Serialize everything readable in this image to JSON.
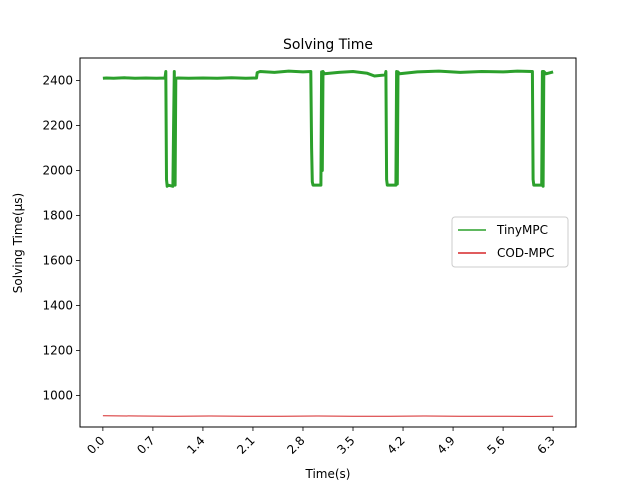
{
  "chart_data": {
    "type": "line",
    "title": "Solving Time",
    "xlabel": "Time(s)",
    "ylabel": "Solving Time(μs)",
    "xlim": [
      -0.32,
      6.62
    ],
    "ylim": [
      860,
      2500
    ],
    "xticks": [
      0.0,
      0.7,
      1.4,
      2.1,
      2.8,
      3.5,
      4.2,
      4.9,
      5.6,
      6.3
    ],
    "xtick_labels": [
      "0.0",
      "0.7",
      "1.4",
      "2.1",
      "2.8",
      "3.5",
      "4.2",
      "4.9",
      "5.6",
      "6.3"
    ],
    "yticks": [
      1000,
      1200,
      1400,
      1600,
      1800,
      2000,
      2200,
      2400
    ],
    "ytick_labels": [
      "1000",
      "1200",
      "1400",
      "1600",
      "1800",
      "2000",
      "2200",
      "2400"
    ],
    "grid": false,
    "legend": "center-right",
    "series": [
      {
        "name": "TinyMPC",
        "color": "#2ca02c",
        "x": [
          0.0,
          0.05,
          0.15,
          0.3,
          0.45,
          0.6,
          0.75,
          0.87,
          0.88,
          0.89,
          0.9,
          0.91,
          0.98,
          0.99,
          1.0,
          1.01,
          1.02,
          1.05,
          1.2,
          1.4,
          1.6,
          1.8,
          2.0,
          2.15,
          2.16,
          2.2,
          2.4,
          2.6,
          2.8,
          2.91,
          2.92,
          2.93,
          2.94,
          3.05,
          3.06,
          3.07,
          3.08,
          3.1,
          3.3,
          3.5,
          3.7,
          3.8,
          3.95,
          3.96,
          3.97,
          3.98,
          4.1,
          4.11,
          4.12,
          4.13,
          4.15,
          4.4,
          4.7,
          5.0,
          5.3,
          5.6,
          5.8,
          6.0,
          6.01,
          6.02,
          6.03,
          6.14,
          6.15,
          6.16,
          6.17,
          6.2,
          6.3
        ],
        "values": [
          2410,
          2411,
          2410,
          2412,
          2410,
          2411,
          2410,
          2411,
          2440,
          1960,
          1930,
          1935,
          1930,
          2200,
          2440,
          1935,
          2410,
          2411,
          2410,
          2411,
          2410,
          2412,
          2410,
          2411,
          2435,
          2440,
          2436,
          2442,
          2438,
          2440,
          2100,
          1950,
          1935,
          1935,
          2438,
          2000,
          2440,
          2430,
          2436,
          2440,
          2432,
          2420,
          2425,
          2440,
          1960,
          1935,
          1935,
          2440,
          1940,
          2438,
          2430,
          2438,
          2442,
          2436,
          2440,
          2438,
          2442,
          2440,
          2440,
          1960,
          1935,
          1935,
          2440,
          1930,
          2440,
          2430,
          2438
        ]
      },
      {
        "name": "COD-MPC",
        "color": "#d62728",
        "x": [
          0.0,
          0.5,
          1.0,
          1.5,
          2.0,
          2.5,
          3.0,
          3.5,
          4.0,
          4.5,
          5.0,
          5.5,
          6.0,
          6.3
        ],
        "values": [
          910,
          909,
          908,
          909,
          908,
          908,
          909,
          908,
          908,
          909,
          908,
          908,
          907,
          908
        ]
      }
    ]
  }
}
